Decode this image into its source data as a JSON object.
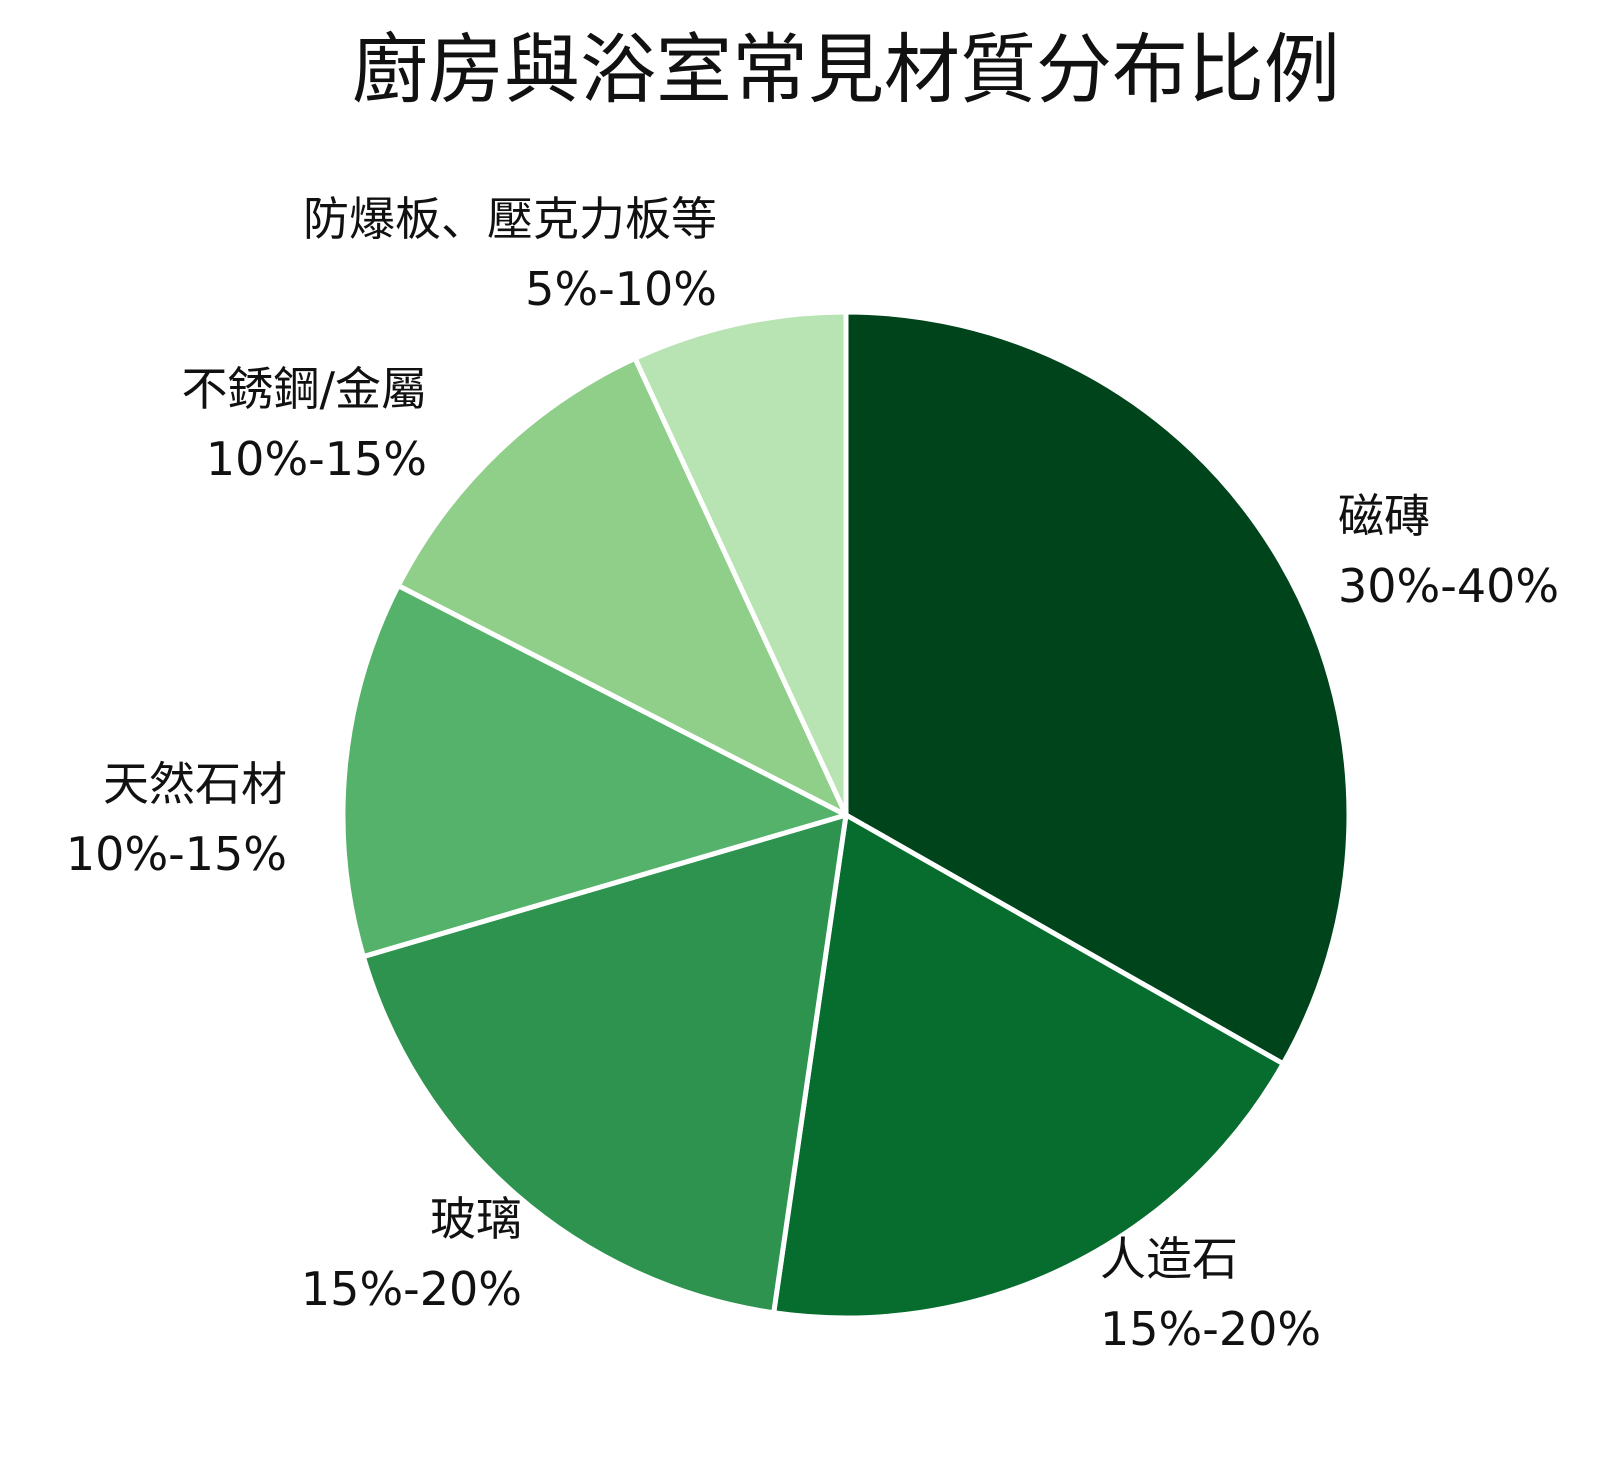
{
  "chart_data": {
    "type": "pie",
    "title": "廚房與浴室常見材質分布比例",
    "slices": [
      {
        "name": "磁磚",
        "range_label": "30%-40%",
        "value": 33.3,
        "color": "#00441b"
      },
      {
        "name": "人造石",
        "range_label": "15%-20%",
        "value": 19.1,
        "color": "#066d2e"
      },
      {
        "name": "玻璃",
        "range_label": "15%-20%",
        "value": 18.2,
        "color": "#2d934e"
      },
      {
        "name": "天然石材",
        "range_label": "10%-15%",
        "value": 12.1,
        "color": "#54b26a"
      },
      {
        "name": "不銹鋼/金屬",
        "range_label": "10%-15%",
        "value": 10.6,
        "color": "#8fcf89"
      },
      {
        "name": "防爆板、壓克力板等",
        "range_label": "5%-10%",
        "value": 6.9,
        "color": "#b8e3b2"
      }
    ],
    "start_angle": "12 o'clock",
    "direction": "clockwise",
    "legend": "none"
  }
}
